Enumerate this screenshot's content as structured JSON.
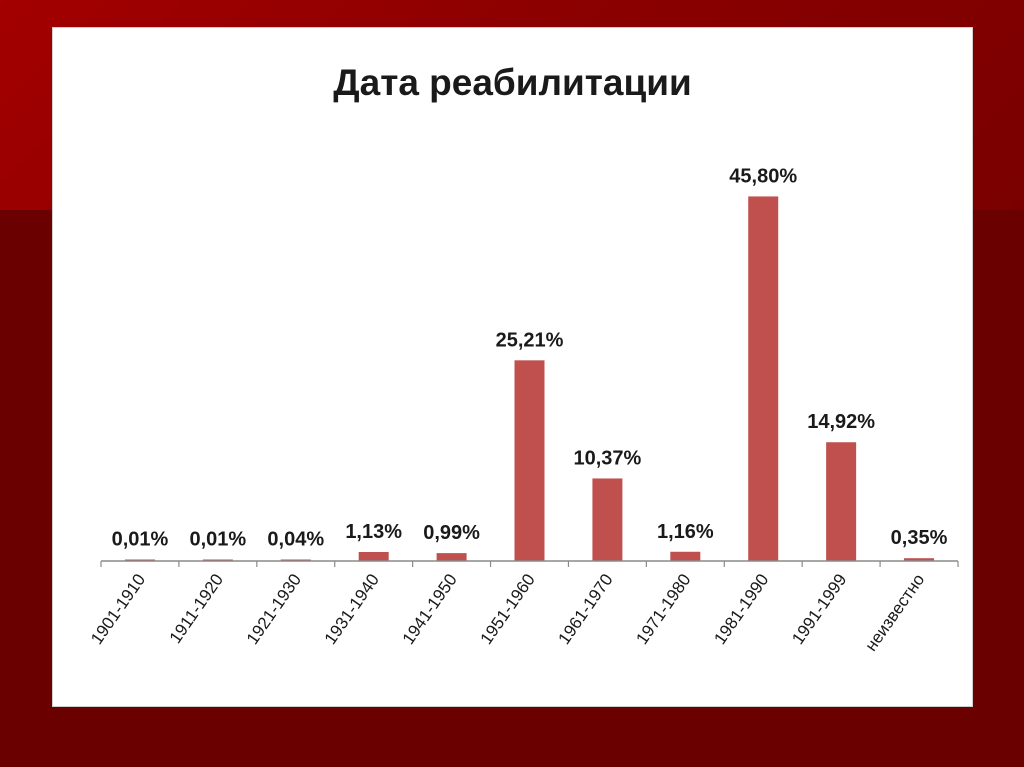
{
  "chart_data": {
    "type": "bar",
    "title": "Дата реабилитации",
    "xlabel": "",
    "ylabel": "",
    "categories": [
      "1901-1910",
      "1911-1920",
      "1921-1930",
      "1931-1940",
      "1941-1950",
      "1951-1960",
      "1961-1970",
      "1971-1980",
      "1981-1990",
      "1991-1999",
      "неизвестно"
    ],
    "values": [
      0.01,
      0.01,
      0.04,
      1.13,
      0.99,
      25.21,
      10.37,
      1.16,
      45.8,
      14.92,
      0.35
    ],
    "data_labels": [
      "0,01%",
      "0,01%",
      "0,04%",
      "1,13%",
      "0,99%",
      "25,21%",
      "10,37%",
      "1,16%",
      "45,80%",
      "14,92%",
      "0,35%"
    ],
    "ylim": [
      0,
      50
    ],
    "grid": false,
    "legend": "none",
    "bar_color": "#c0504d"
  }
}
